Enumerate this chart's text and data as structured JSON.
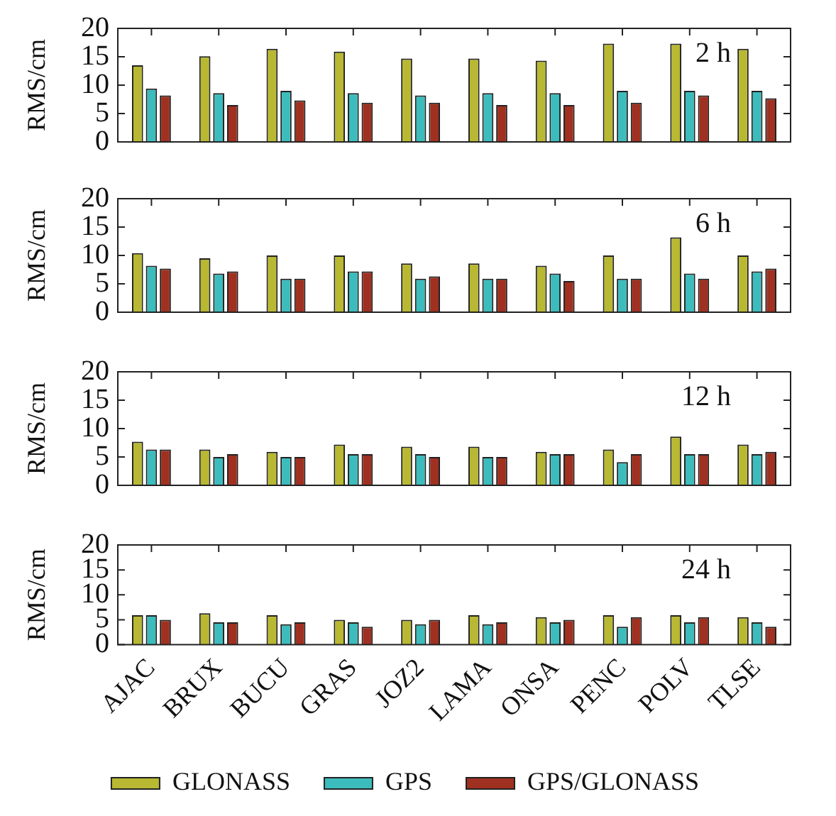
{
  "chart_data": [
    {
      "type": "bar",
      "ylabel": "RMS/cm",
      "annotations": [
        "2 h"
      ],
      "tick_labels": "y",
      "categories": [
        null,
        null,
        null,
        null,
        null,
        null,
        null,
        null,
        null,
        null
      ],
      "ylim": [
        0,
        20
      ],
      "yticks": [
        0,
        5,
        10,
        15,
        20
      ],
      "series": [
        {
          "color": "#b8b832",
          "values": [
            13.5,
            15.1,
            16.4,
            15.9,
            14.7,
            14.7,
            14.3,
            17.3,
            17.3,
            16.4
          ]
        },
        {
          "color": "#3cbcbc",
          "values": [
            9.4,
            8.6,
            9.0,
            8.6,
            8.2,
            8.6,
            8.6,
            9.0,
            9.0,
            9.0
          ]
        },
        {
          "color": "#a03020",
          "values": [
            8.2,
            6.5,
            7.3,
            6.9,
            6.9,
            6.5,
            6.5,
            6.9,
            8.2,
            7.7
          ]
        }
      ]
    },
    {
      "type": "bar",
      "ylabel": "RMS/cm",
      "annotations": [
        "6 h"
      ],
      "tick_labels": "y",
      "categories": [
        null,
        null,
        null,
        null,
        null,
        null,
        null,
        null,
        null,
        null
      ],
      "ylim": [
        0,
        20
      ],
      "yticks": [
        0,
        5,
        10,
        15,
        20
      ],
      "series": [
        {
          "color": "#b8b832",
          "values": [
            10.4,
            9.5,
            10.0,
            10.0,
            8.6,
            8.6,
            8.2,
            10.0,
            13.2,
            10.0
          ]
        },
        {
          "color": "#3cbcbc",
          "values": [
            8.2,
            6.8,
            5.9,
            7.2,
            5.9,
            5.9,
            6.8,
            5.9,
            6.8,
            7.2
          ]
        },
        {
          "color": "#a03020",
          "values": [
            7.7,
            7.2,
            5.9,
            7.2,
            6.3,
            5.9,
            5.5,
            5.9,
            5.9,
            7.7
          ]
        }
      ]
    },
    {
      "type": "bar",
      "ylabel": "RMS/cm",
      "annotations": [
        "12 h"
      ],
      "tick_labels": "y",
      "categories": [
        null,
        null,
        null,
        null,
        null,
        null,
        null,
        null,
        null,
        null
      ],
      "ylim": [
        0,
        20
      ],
      "yticks": [
        0,
        5,
        10,
        15,
        20
      ],
      "series": [
        {
          "color": "#b8b832",
          "values": [
            7.7,
            6.3,
            5.9,
            7.2,
            6.8,
            6.8,
            5.9,
            6.3,
            8.6,
            7.2
          ]
        },
        {
          "color": "#3cbcbc",
          "values": [
            6.3,
            5.0,
            5.0,
            5.5,
            5.5,
            5.0,
            5.5,
            4.1,
            5.5,
            5.5
          ]
        },
        {
          "color": "#a03020",
          "values": [
            6.3,
            5.5,
            5.0,
            5.5,
            5.0,
            5.0,
            5.5,
            5.5,
            5.5,
            5.9
          ]
        }
      ]
    },
    {
      "type": "bar",
      "ylabel": "RMS/cm",
      "annotations": [
        "24 h"
      ],
      "legend": "bottom",
      "categories": [
        "AJAC",
        "BRUX",
        "BUCU",
        "GRAS",
        "JOZ2",
        "LAMA",
        "ONSA",
        "PENC",
        "POLV",
        "TLSE"
      ],
      "ylim": [
        0,
        20
      ],
      "yticks": [
        0,
        5,
        10,
        15,
        20
      ],
      "series": [
        {
          "name": "GLONASS",
          "color": "#b8b832",
          "values": [
            5.9,
            6.3,
            5.9,
            5.0,
            5.0,
            5.9,
            5.5,
            5.9,
            5.9,
            5.5
          ]
        },
        {
          "name": "GPS",
          "color": "#3cbcbc",
          "values": [
            5.9,
            4.5,
            4.1,
            4.5,
            4.1,
            4.1,
            4.5,
            3.6,
            4.5,
            4.5
          ]
        },
        {
          "name": "GPS/GLONASS",
          "color": "#a03020",
          "values": [
            5.0,
            4.5,
            4.5,
            3.6,
            5.0,
            4.5,
            5.0,
            5.5,
            5.5,
            3.6
          ]
        }
      ]
    }
  ]
}
